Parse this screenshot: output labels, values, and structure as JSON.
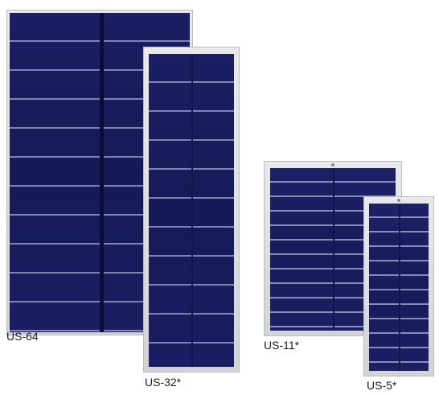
{
  "panels": [
    {
      "model": "US-64"
    },
    {
      "model": "US-32*"
    },
    {
      "model": "US-11*"
    },
    {
      "model": "US-5*"
    }
  ],
  "colors": {
    "cell_blue": "#1b1f63",
    "frame_silver": "#d9dadc",
    "background": "#ffffff"
  }
}
